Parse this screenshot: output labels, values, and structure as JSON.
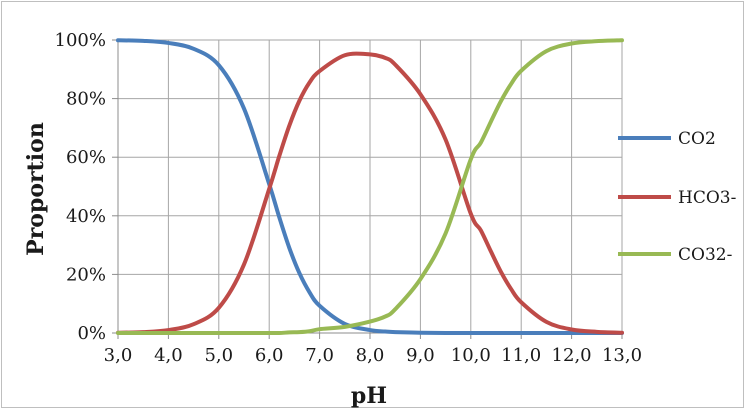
{
  "chart_data": {
    "type": "line",
    "title": "",
    "xlabel": "pH",
    "ylabel": "Proportion",
    "xlim": [
      3.0,
      13.0
    ],
    "ylim": [
      0,
      100
    ],
    "x_ticks": [
      "3,0",
      "4,0",
      "5,0",
      "6,0",
      "7,0",
      "8,0",
      "9,0",
      "10,0",
      "11,0",
      "12,0",
      "13,0"
    ],
    "y_ticks": [
      "0%",
      "20%",
      "40%",
      "60%",
      "80%",
      "100%"
    ],
    "grid": true,
    "legend_position": "right",
    "x": [
      3.0,
      3.5,
      4.0,
      4.5,
      5.0,
      5.5,
      6.0,
      6.2,
      6.4,
      6.6,
      6.8,
      7.0,
      7.5,
      8.0,
      8.3,
      8.5,
      9.0,
      9.5,
      10.0,
      10.2,
      10.4,
      10.6,
      10.8,
      11.0,
      11.5,
      12.0,
      12.5,
      13.0
    ],
    "series": [
      {
        "name": "CO2",
        "color": "#4a7ebb",
        "values": [
          99.9,
          99.7,
          99.0,
          97.0,
          91.4,
          76.6,
          50.8,
          39.5,
          29.0,
          20.4,
          13.9,
          9.3,
          3.1,
          1.0,
          0.5,
          0.3,
          0.1,
          0.0,
          0.0,
          0.0,
          0.0,
          0.0,
          0.0,
          0.0,
          0.0,
          0.0,
          0.0,
          0.0
        ]
      },
      {
        "name": "HCO3-",
        "color": "#be4b48",
        "values": [
          0.1,
          0.3,
          1.0,
          3.0,
          8.6,
          23.4,
          49.2,
          60.4,
          70.8,
          79.3,
          85.5,
          89.4,
          94.8,
          95.1,
          93.9,
          91.6,
          81.5,
          66.0,
          40.7,
          35.0,
          27.8,
          20.8,
          15.0,
          10.5,
          3.8,
          1.2,
          0.4,
          0.1
        ]
      },
      {
        "name": "CO32-",
        "color": "#98b954",
        "values": [
          0.0,
          0.0,
          0.0,
          0.0,
          0.0,
          0.0,
          0.0,
          0.0,
          0.2,
          0.3,
          0.6,
          1.3,
          2.1,
          3.9,
          5.6,
          8.1,
          18.4,
          34.0,
          59.3,
          65.0,
          72.2,
          79.2,
          85.0,
          89.5,
          96.2,
          98.8,
          99.6,
          99.9
        ]
      }
    ]
  }
}
